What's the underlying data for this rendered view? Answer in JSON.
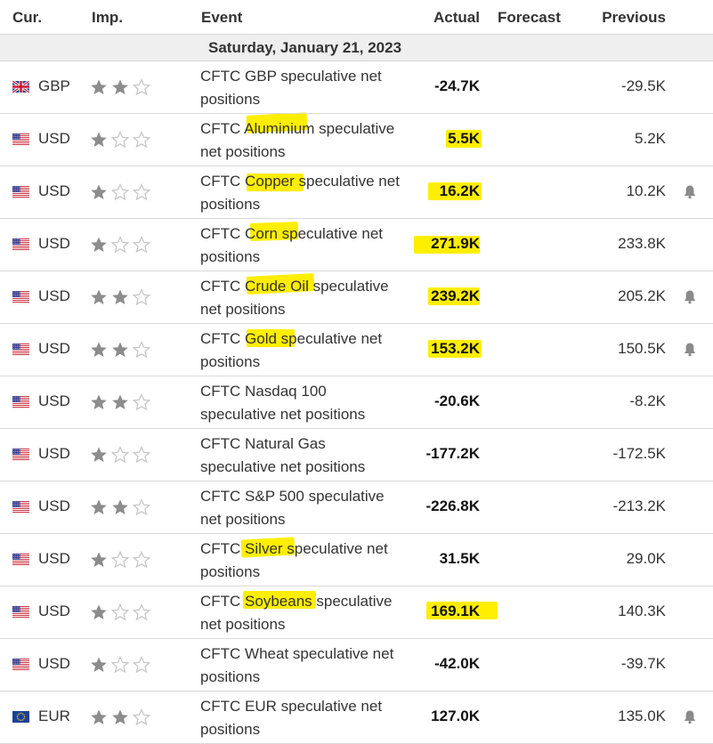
{
  "header": {
    "currency": "Cur.",
    "importance": "Imp.",
    "event": "Event",
    "actual": "Actual",
    "forecast": "Forecast",
    "previous": "Previous"
  },
  "date": "Saturday, January 21, 2023",
  "colors": {
    "highlight": "#ffee00",
    "star_on": "#8c8c8c",
    "star_off": "#c8c8c8",
    "border": "#d9d9d9"
  },
  "rows": [
    {
      "currency": "GBP",
      "flag": "uk-flag",
      "importance": 2,
      "event_l1": "CFTC GBP speculative net",
      "event_l2": "positions",
      "actual": "-24.7K",
      "forecast": "",
      "previous": "-29.5K",
      "alert": false
    },
    {
      "currency": "USD",
      "flag": "us-flag",
      "importance": 1,
      "event_l1": "CFTC Aluminium speculative",
      "event_l2": "net positions",
      "actual": "5.5K",
      "forecast": "",
      "previous": "5.2K",
      "alert": false
    },
    {
      "currency": "USD",
      "flag": "us-flag",
      "importance": 1,
      "event_l1": "CFTC Copper speculative net",
      "event_l2": "positions",
      "actual": "16.2K",
      "forecast": "",
      "previous": "10.2K",
      "alert": true
    },
    {
      "currency": "USD",
      "flag": "us-flag",
      "importance": 1,
      "event_l1": "CFTC Corn speculative net",
      "event_l2": "positions",
      "actual": "271.9K",
      "forecast": "",
      "previous": "233.8K",
      "alert": false
    },
    {
      "currency": "USD",
      "flag": "us-flag",
      "importance": 2,
      "event_l1": "CFTC Crude Oil speculative",
      "event_l2": "net positions",
      "actual": "239.2K",
      "forecast": "",
      "previous": "205.2K",
      "alert": true
    },
    {
      "currency": "USD",
      "flag": "us-flag",
      "importance": 2,
      "event_l1": "CFTC Gold speculative net",
      "event_l2": "positions",
      "actual": "153.2K",
      "forecast": "",
      "previous": "150.5K",
      "alert": true
    },
    {
      "currency": "USD",
      "flag": "us-flag",
      "importance": 2,
      "event_l1": "CFTC Nasdaq 100",
      "event_l2": "speculative net positions",
      "actual": "-20.6K",
      "forecast": "",
      "previous": "-8.2K",
      "alert": false
    },
    {
      "currency": "USD",
      "flag": "us-flag",
      "importance": 1,
      "event_l1": "CFTC Natural Gas",
      "event_l2": "speculative net positions",
      "actual": "-177.2K",
      "forecast": "",
      "previous": "-172.5K",
      "alert": false
    },
    {
      "currency": "USD",
      "flag": "us-flag",
      "importance": 2,
      "event_l1": "CFTC S&P 500 speculative",
      "event_l2": "net positions",
      "actual": "-226.8K",
      "forecast": "",
      "previous": "-213.2K",
      "alert": false
    },
    {
      "currency": "USD",
      "flag": "us-flag",
      "importance": 1,
      "event_l1": "CFTC Silver speculative net",
      "event_l2": "positions",
      "actual": "31.5K",
      "forecast": "",
      "previous": "29.0K",
      "alert": false
    },
    {
      "currency": "USD",
      "flag": "us-flag",
      "importance": 1,
      "event_l1": "CFTC Soybeans speculative",
      "event_l2": "net positions",
      "actual": "169.1K",
      "forecast": "",
      "previous": "140.3K",
      "alert": false
    },
    {
      "currency": "USD",
      "flag": "us-flag",
      "importance": 1,
      "event_l1": "CFTC Wheat speculative net",
      "event_l2": "positions",
      "actual": "-42.0K",
      "forecast": "",
      "previous": "-39.7K",
      "alert": false
    },
    {
      "currency": "EUR",
      "flag": "eu-flag",
      "importance": 2,
      "event_l1": "CFTC EUR speculative net",
      "event_l2": "positions",
      "actual": "127.0K",
      "forecast": "",
      "previous": "135.0K",
      "alert": true
    }
  ]
}
